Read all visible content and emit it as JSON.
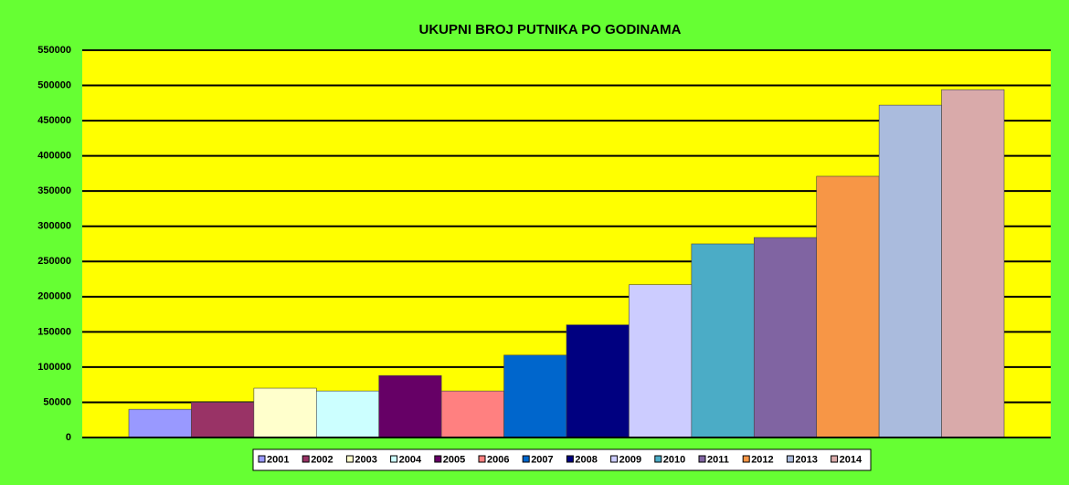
{
  "chart_data": {
    "type": "bar",
    "title": "UKUPNI BROJ PUTNIKA PO GODINAMA",
    "series": [
      {
        "name": "2001",
        "color": "#9999ff",
        "values": [
          40000
        ]
      },
      {
        "name": "2002",
        "color": "#993366",
        "values": [
          50000
        ]
      },
      {
        "name": "2003",
        "color": "#ffffcc",
        "values": [
          70000
        ]
      },
      {
        "name": "2004",
        "color": "#ccffff",
        "values": [
          66000
        ]
      },
      {
        "name": "2005",
        "color": "#660066",
        "values": [
          88000
        ]
      },
      {
        "name": "2006",
        "color": "#ff8080",
        "values": [
          66000
        ]
      },
      {
        "name": "2007",
        "color": "#0066cc",
        "values": [
          117000
        ]
      },
      {
        "name": "2008",
        "color": "#000080",
        "values": [
          160000
        ]
      },
      {
        "name": "2009",
        "color": "#ccccff",
        "values": [
          217000
        ]
      },
      {
        "name": "2010",
        "color": "#4bacc6",
        "values": [
          275000
        ]
      },
      {
        "name": "2011",
        "color": "#8064a2",
        "values": [
          284000
        ]
      },
      {
        "name": "2012",
        "color": "#f79646",
        "values": [
          371000
        ]
      },
      {
        "name": "2013",
        "color": "#aabbdd",
        "values": [
          472000
        ]
      },
      {
        "name": "2014",
        "color": "#d9aaaa",
        "values": [
          494000
        ]
      }
    ],
    "ylim": [
      0,
      550000
    ],
    "yticks": [
      0,
      50000,
      100000,
      150000,
      200000,
      250000,
      300000,
      350000,
      400000,
      450000,
      500000,
      550000
    ],
    "grid": true,
    "legend": "bottom"
  }
}
